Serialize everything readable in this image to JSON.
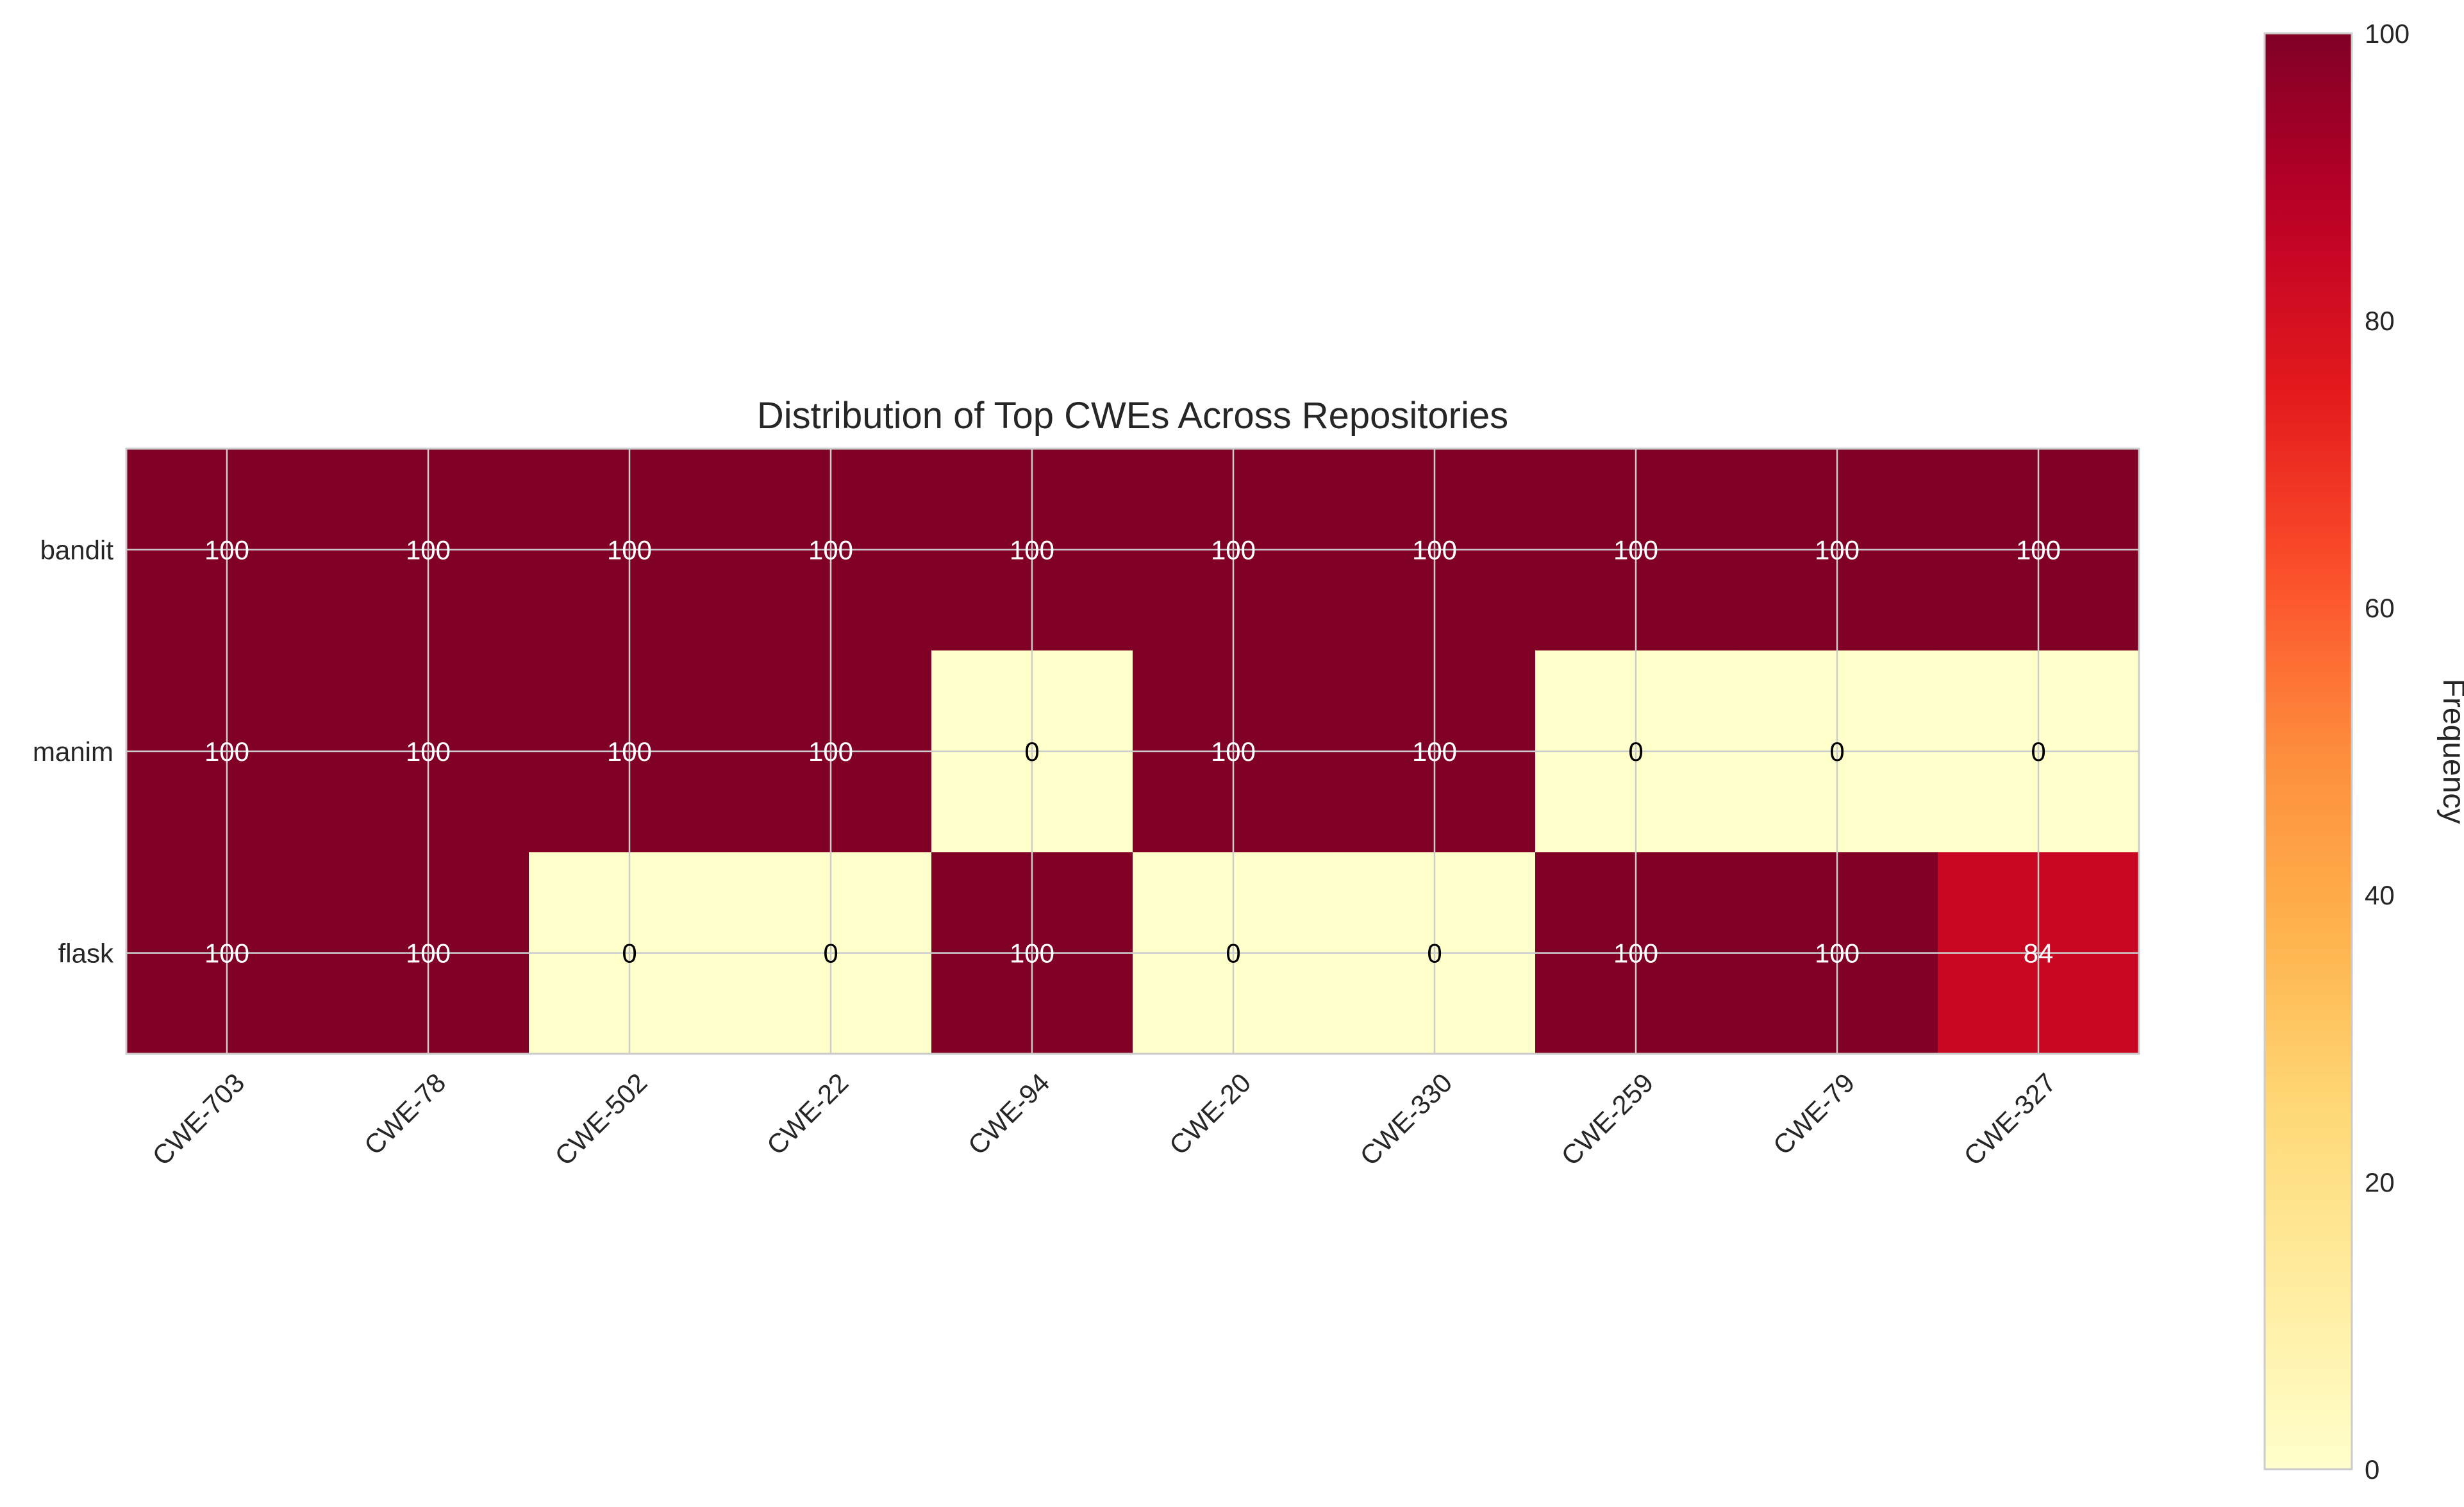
{
  "chart_data": {
    "type": "heatmap",
    "title": "Distribution of Top CWEs Across Repositories",
    "xlabel": "",
    "ylabel": "",
    "colorbar_label": "Frequency",
    "rows": [
      "bandit",
      "manim",
      "flask"
    ],
    "columns": [
      "CWE-703",
      "CWE-78",
      "CWE-502",
      "CWE-22",
      "CWE-94",
      "CWE-20",
      "CWE-330",
      "CWE-259",
      "CWE-79",
      "CWE-327"
    ],
    "values": [
      [
        100,
        100,
        100,
        100,
        100,
        100,
        100,
        100,
        100,
        100
      ],
      [
        100,
        100,
        100,
        100,
        0,
        100,
        100,
        0,
        0,
        0
      ],
      [
        100,
        100,
        0,
        0,
        100,
        0,
        0,
        100,
        100,
        84
      ]
    ],
    "value_range": [
      0,
      100
    ],
    "colorbar_ticks": [
      0,
      20,
      40,
      60,
      80,
      100
    ],
    "colormap": "YlOrRd",
    "grid": true
  }
}
